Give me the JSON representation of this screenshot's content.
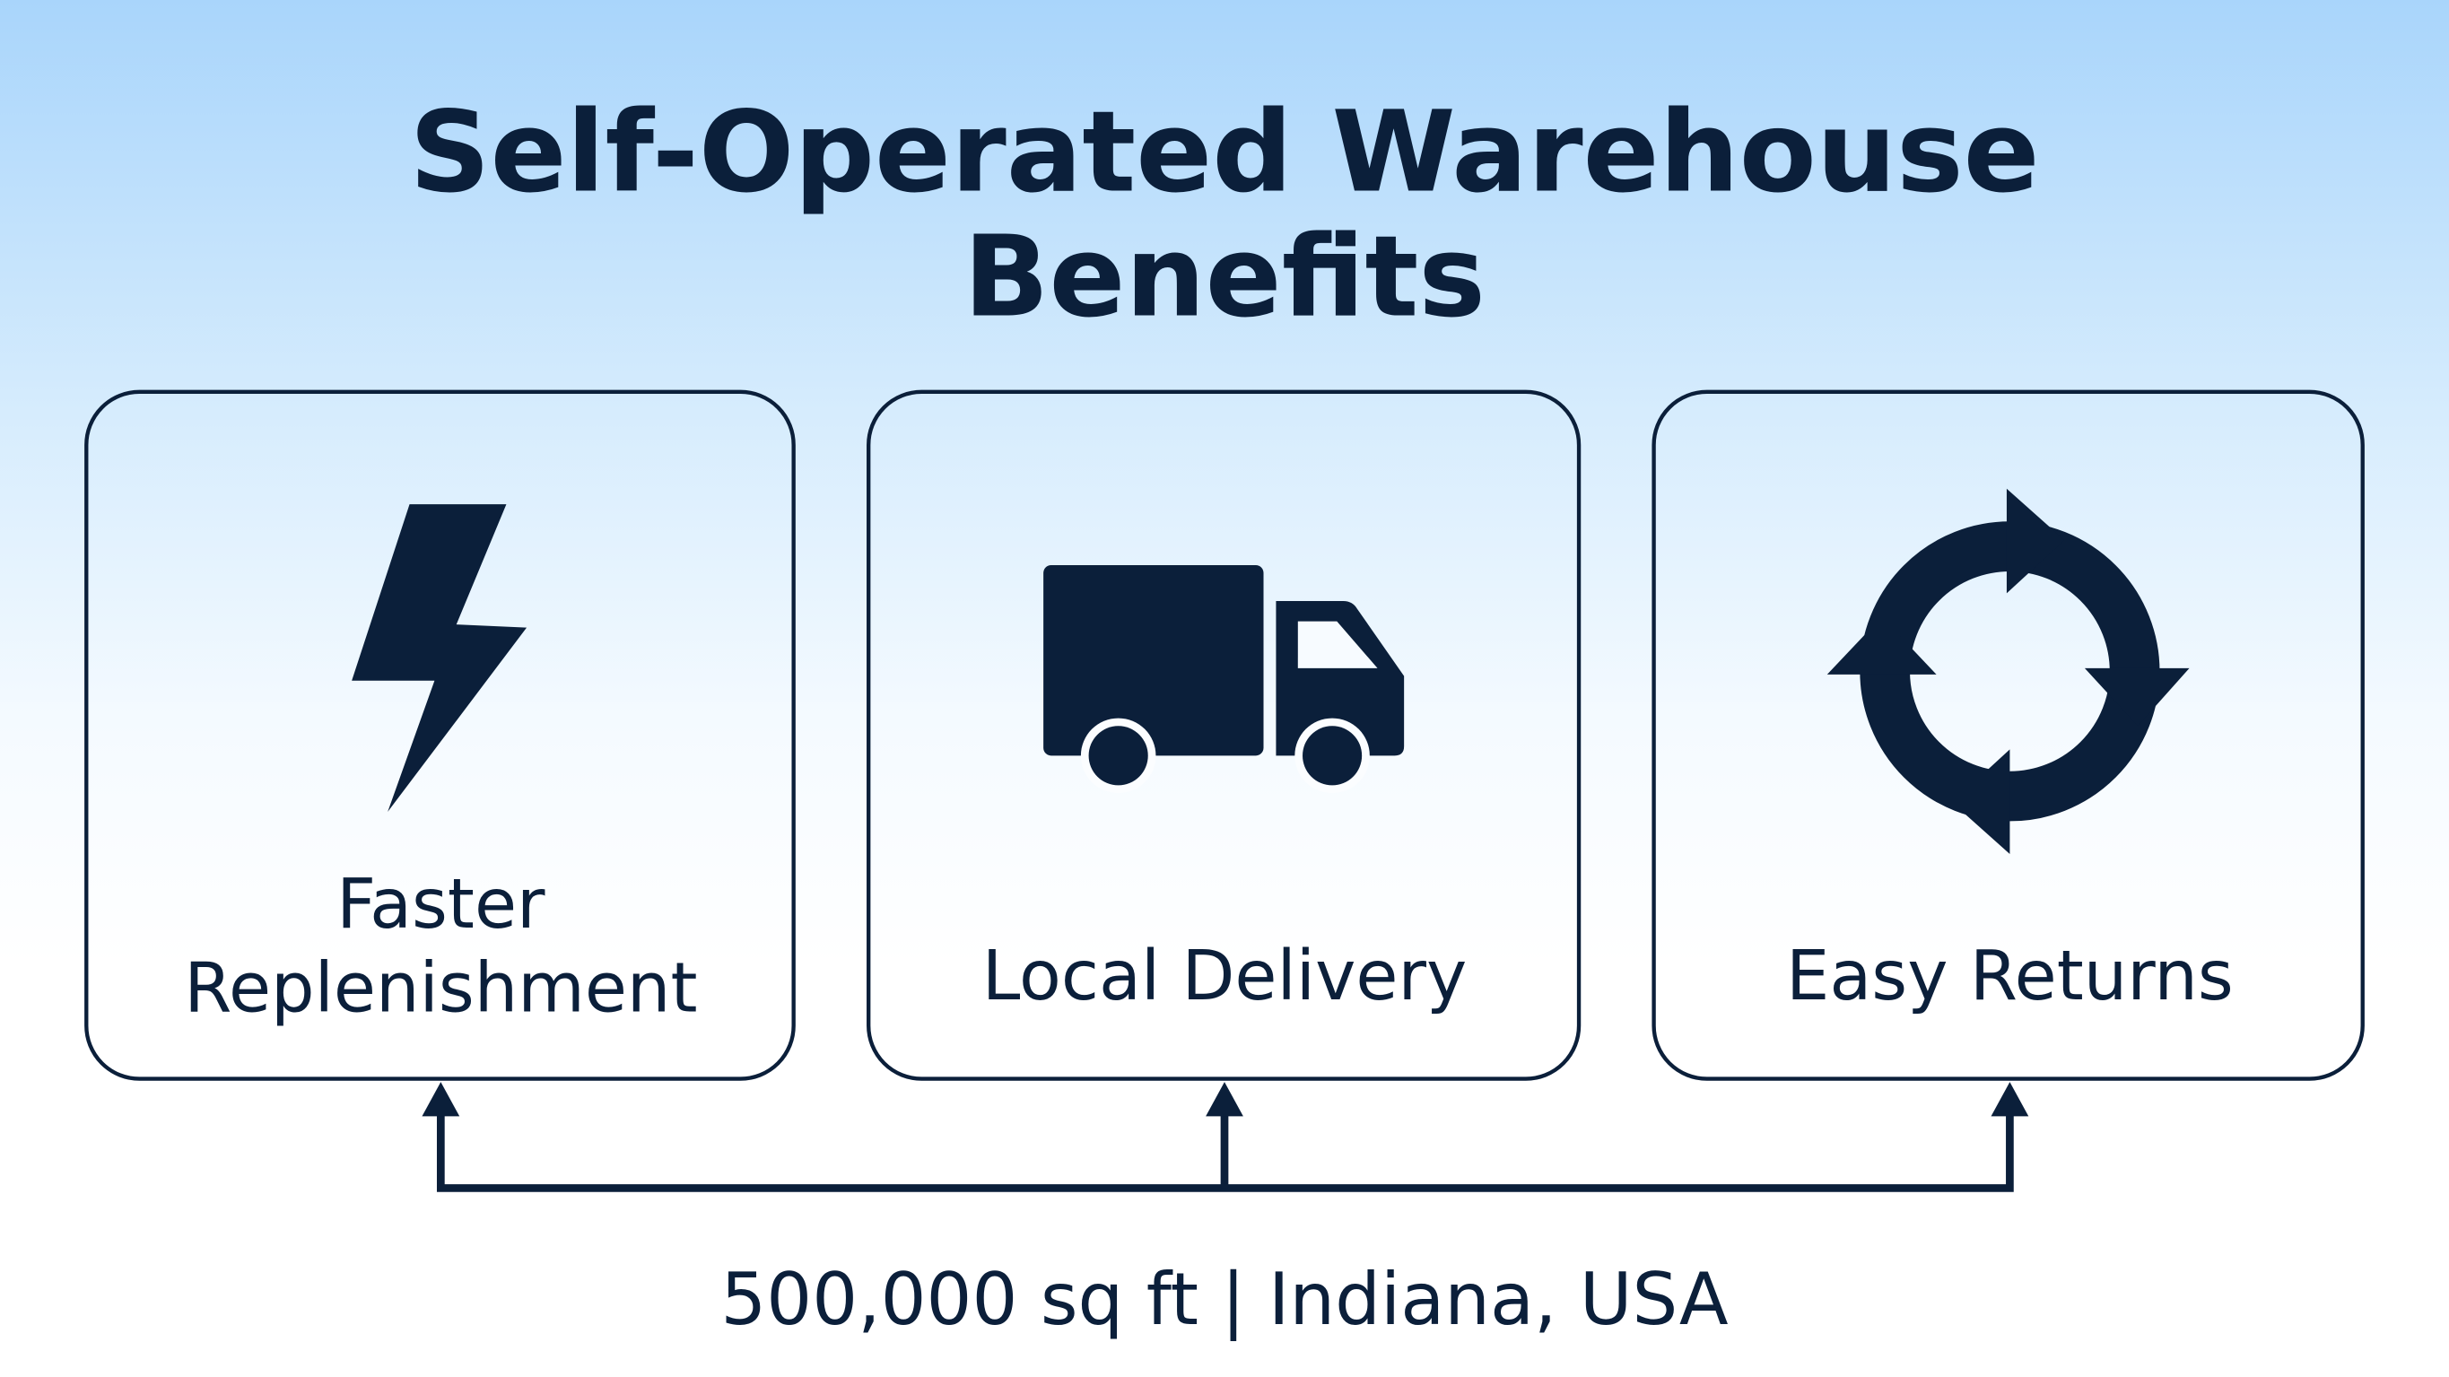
{
  "title": {
    "line1": "Self-Operated Warehouse",
    "line2": "Benefits"
  },
  "cards": [
    {
      "icon": "lightning-bolt-icon",
      "label_line1": "Faster",
      "label_line2": "Replenishment"
    },
    {
      "icon": "delivery-truck-icon",
      "label": "Local Delivery"
    },
    {
      "icon": "circular-arrows-returns-icon",
      "label": "Easy Returns"
    }
  ],
  "footer": {
    "text": "500,000 sq ft | Indiana, USA"
  },
  "colors": {
    "ink": "#0b1f3a",
    "background_top": "#a9d5fb",
    "background_bottom": "#ffffff"
  }
}
